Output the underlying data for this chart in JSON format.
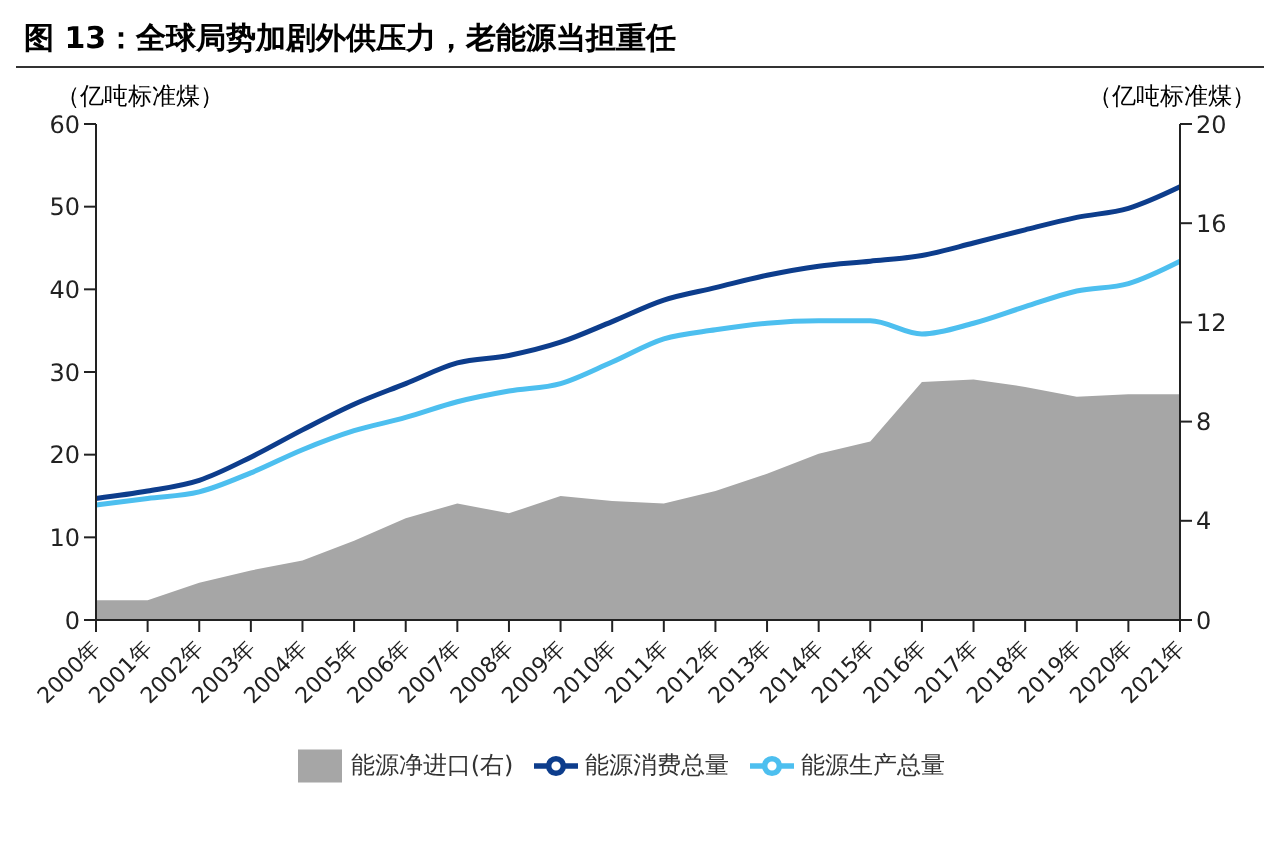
{
  "chart_data": {
    "type": "line",
    "title": "图 13：全球局势加剧外供压力，老能源当担重任",
    "ylabel": "（亿吨标准煤）",
    "y2label": "（亿吨标准煤）",
    "categories": [
      "2000年",
      "2001年",
      "2002年",
      "2003年",
      "2004年",
      "2005年",
      "2006年",
      "2007年",
      "2008年",
      "2009年",
      "2010年",
      "2011年",
      "2012年",
      "2013年",
      "2014年",
      "2015年",
      "2016年",
      "2017年",
      "2018年",
      "2019年",
      "2020年",
      "2021年"
    ],
    "series": [
      {
        "name": "能源净进口(右)",
        "type": "area",
        "axis": "y2",
        "color": "#a6a6a6",
        "values": [
          0.8,
          0.8,
          1.5,
          2.0,
          2.4,
          3.2,
          4.1,
          4.7,
          4.3,
          5.0,
          4.8,
          4.7,
          5.2,
          5.9,
          6.7,
          7.2,
          9.6,
          9.7,
          9.4,
          9.0,
          9.1,
          9.1
        ]
      },
      {
        "name": "能源消费总量",
        "color": "#0d3d8c",
        "values": [
          14.7,
          15.6,
          16.9,
          19.7,
          23.0,
          26.1,
          28.6,
          31.1,
          32.0,
          33.6,
          36.1,
          38.7,
          40.2,
          41.7,
          42.8,
          43.4,
          44.1,
          45.6,
          47.2,
          48.7,
          49.8,
          52.4
        ]
      },
      {
        "name": "能源生产总量",
        "color": "#4dbfef",
        "values": [
          13.9,
          14.7,
          15.5,
          17.8,
          20.6,
          22.9,
          24.5,
          26.4,
          27.7,
          28.6,
          31.2,
          34.0,
          35.1,
          35.9,
          36.2,
          36.2,
          34.6,
          35.9,
          37.9,
          39.8,
          40.7,
          43.4
        ]
      }
    ],
    "ylim": [
      0,
      60
    ],
    "yticks": [
      0,
      10,
      20,
      30,
      40,
      50,
      60
    ],
    "y2lim": [
      0,
      20
    ],
    "y2ticks": [
      0,
      4,
      8,
      12,
      16,
      20
    ],
    "grid": false,
    "legend": "bottom",
    "marker": "none",
    "line_style": "solid"
  }
}
